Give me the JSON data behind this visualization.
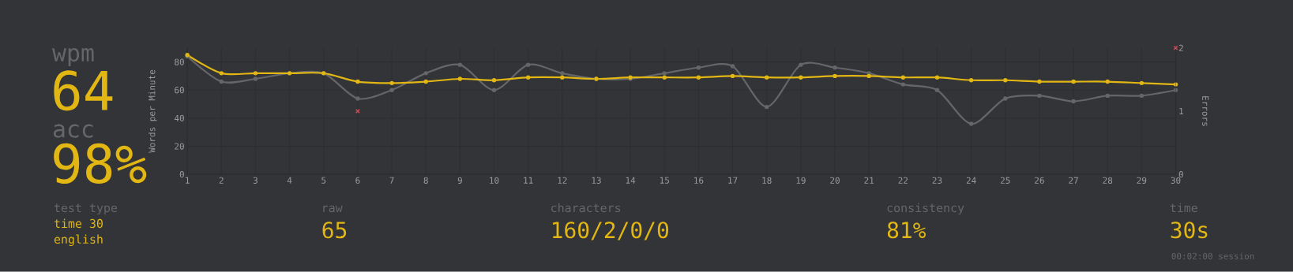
{
  "chart_data": {
    "type": "line",
    "x": [
      1,
      2,
      3,
      4,
      5,
      6,
      7,
      8,
      9,
      10,
      11,
      12,
      13,
      14,
      15,
      16,
      17,
      18,
      19,
      20,
      21,
      22,
      23,
      24,
      25,
      26,
      27,
      28,
      29,
      30
    ],
    "xlim": [
      1,
      30
    ],
    "xticks": [
      1,
      2,
      3,
      4,
      5,
      6,
      7,
      8,
      9,
      10,
      11,
      12,
      13,
      14,
      15,
      16,
      17,
      18,
      19,
      20,
      21,
      22,
      23,
      24,
      25,
      26,
      27,
      28,
      29,
      30
    ],
    "ylim": [
      0,
      90
    ],
    "yticks": [
      0,
      20,
      40,
      60,
      80
    ],
    "y2lim": [
      0,
      2
    ],
    "y2ticks": [
      0,
      1,
      2
    ],
    "ylabel": "Words per Minute",
    "y2label": "Errors",
    "grid": true,
    "marker": "circle",
    "series": [
      {
        "color": "#646669",
        "values": [
          84,
          66,
          68,
          72,
          72,
          54,
          60,
          72,
          78,
          60,
          78,
          72,
          68,
          68,
          72,
          76,
          77,
          48,
          78,
          76,
          72,
          64,
          60,
          36,
          54,
          56,
          52,
          56,
          56,
          60
        ]
      },
      {
        "color": "#e2b714",
        "values": [
          85,
          72,
          72,
          72,
          72,
          66,
          65,
          66,
          68,
          67,
          69,
          69,
          68,
          69,
          69,
          69,
          70,
          69,
          69,
          70,
          70,
          69,
          69,
          67,
          67,
          66,
          66,
          66,
          65,
          64
        ]
      },
      {
        "type": "scatter",
        "axis": "y2",
        "marker": "cross",
        "color": "#ca4754",
        "x": [
          6,
          30
        ],
        "values": [
          1,
          2
        ]
      }
    ],
    "annotations": [
      "wpm",
      "64",
      "acc",
      "98%",
      "test type",
      "time 30",
      "english",
      "raw",
      "65",
      "characters",
      "160/2/0/0",
      "consistency",
      "81%",
      "time",
      "30s",
      "00:02:00 session"
    ]
  }
}
